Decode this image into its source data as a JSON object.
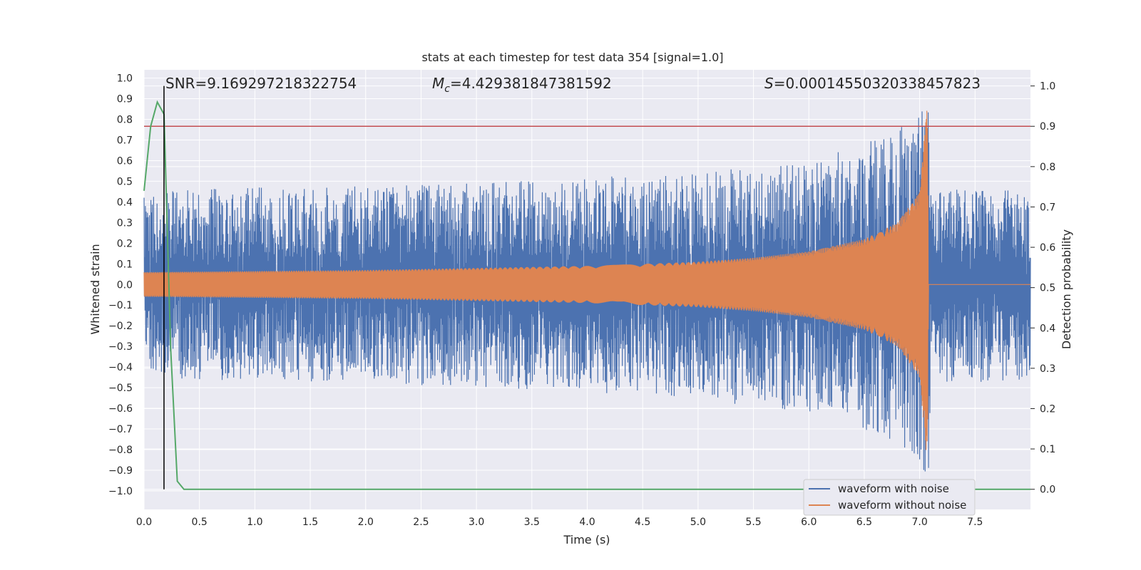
{
  "chart_data": {
    "type": "line",
    "title": "stats at each timestep for test data 354 [signal=1.0]",
    "xlabel": "Time (s)",
    "ylabel": "Whitened strain",
    "y2label": "Detection probability",
    "xlim": [
      0.0,
      8.0
    ],
    "ylim": [
      -1.09,
      1.04
    ],
    "y2lim": [
      -0.05,
      1.04
    ],
    "xticks": [
      "0.0",
      "0.5",
      "1.0",
      "1.5",
      "2.0",
      "2.5",
      "3.0",
      "3.5",
      "4.0",
      "4.5",
      "5.0",
      "5.5",
      "6.0",
      "6.5",
      "7.0",
      "7.5"
    ],
    "yticks": [
      "1.0",
      "0.9",
      "0.8",
      "0.7",
      "0.6",
      "0.5",
      "0.4",
      "0.3",
      "0.2",
      "0.1",
      "0.0",
      "-0.1",
      "-0.2",
      "-0.3",
      "-0.4",
      "-0.5",
      "-0.6",
      "-0.7",
      "-0.8",
      "-0.9",
      "-1.0"
    ],
    "y2ticks": [
      "1.0",
      "0.9",
      "0.8",
      "0.7",
      "0.6",
      "0.5",
      "0.4",
      "0.3",
      "0.2",
      "0.1",
      "0.0"
    ],
    "grid": true,
    "legend_position": "bottom-right",
    "annotations": {
      "snr": "SNR=9.169297218322754",
      "mc_prefix": "M",
      "mc_sub": "c",
      "mc_value": "=4.429381847381592",
      "s_prefix": "S",
      "s_value": "=0.00014550320338457823"
    },
    "series": [
      {
        "name": "waveform with noise",
        "color": "#4c72b0",
        "axis": "left",
        "noise_envelope": {
          "x": [
            0.0,
            1.0,
            2.0,
            3.0,
            4.0,
            5.0,
            6.0,
            6.5,
            7.0,
            7.08,
            7.1,
            8.0
          ],
          "upper": [
            0.45,
            0.47,
            0.48,
            0.49,
            0.52,
            0.55,
            0.6,
            0.68,
            0.82,
            0.95,
            0.48,
            0.45
          ],
          "lower": [
            -0.45,
            -0.47,
            -0.48,
            -0.5,
            -0.52,
            -0.56,
            -0.62,
            -0.7,
            -0.85,
            -1.0,
            -0.48,
            -0.47
          ]
        }
      },
      {
        "name": "waveform without noise",
        "color": "#dd8452",
        "axis": "left",
        "envelope": {
          "x": [
            0.0,
            1.0,
            2.0,
            3.0,
            4.0,
            5.0,
            5.5,
            6.0,
            6.5,
            6.8,
            7.0,
            7.07,
            7.08,
            8.0
          ],
          "amplitude": [
            0.06,
            0.065,
            0.07,
            0.08,
            0.09,
            0.11,
            0.13,
            0.16,
            0.22,
            0.3,
            0.45,
            0.88,
            0.0,
            0.0
          ]
        }
      },
      {
        "name": "detection probability",
        "color": "#55a868",
        "axis": "right",
        "x": [
          0.0,
          0.06,
          0.12,
          0.18,
          0.24,
          0.3,
          0.36,
          0.42,
          8.0
        ],
        "y": [
          0.74,
          0.9,
          0.96,
          0.93,
          0.35,
          0.02,
          0.0,
          0.0,
          0.0
        ]
      }
    ],
    "threshold": {
      "axis": "right",
      "value": 0.9,
      "color": "#c44e52"
    },
    "marker_line": {
      "x": 0.18,
      "color": "#000000"
    }
  }
}
